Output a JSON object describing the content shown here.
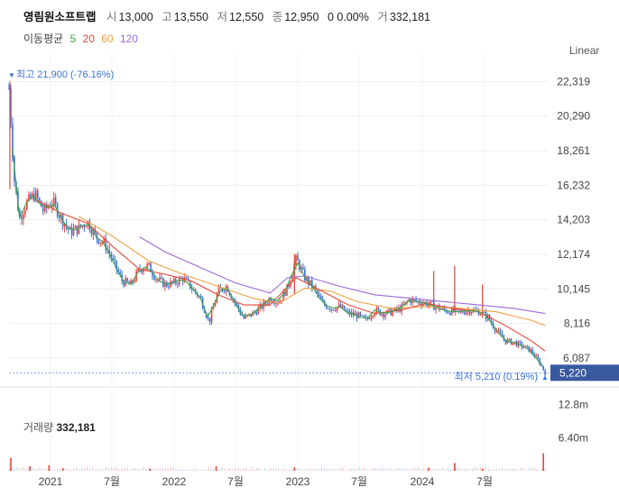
{
  "header": {
    "name": "영림원소프트랩",
    "open_label": "시",
    "open": "13,000",
    "high_label": "고",
    "high": "13,550",
    "low_label": "저",
    "low": "12,550",
    "close_label": "종",
    "close": "12,950",
    "change": "0 0.00%",
    "volume_label": "거",
    "volume": "332,181"
  },
  "moving_average": {
    "label": "이동평균",
    "periods": [
      {
        "text": "5",
        "color": "#3fa34d"
      },
      {
        "text": "20",
        "color": "#e8463a"
      },
      {
        "text": "60",
        "color": "#f0a040"
      },
      {
        "text": "120",
        "color": "#9b6bd8"
      }
    ]
  },
  "scale_mode": "Linear",
  "chart_data": {
    "type": "candlestick",
    "price_axis": {
      "ticks": [
        "22,319",
        "20,290",
        "18,261",
        "16,232",
        "14,203",
        "12,174",
        "10,145",
        "8,116",
        "6,087"
      ],
      "tick_values": [
        22319,
        20290,
        18261,
        16232,
        14203,
        12174,
        10145,
        8116,
        6087
      ],
      "ylim": [
        4600,
        23400
      ],
      "last_price_label": "5,220",
      "last_price": 5220
    },
    "x_axis": {
      "labels": [
        "2021",
        "7월",
        "2022",
        "7월",
        "2023",
        "7월",
        "2024",
        "7월"
      ],
      "range": [
        "2020-11",
        "2024-11"
      ]
    },
    "annotations": {
      "high": {
        "text": "최고 21,900 (-76.16%)",
        "value": 21900
      },
      "low": {
        "text": "최저 5,210 (0.19%)",
        "value": 5210
      }
    },
    "series_close": [
      {
        "t": 0.0,
        "v": 21900
      },
      {
        "t": 0.3,
        "v": 16600
      },
      {
        "t": 0.6,
        "v": 14300
      },
      {
        "t": 1.0,
        "v": 15200
      },
      {
        "t": 1.5,
        "v": 15700
      },
      {
        "t": 2.0,
        "v": 14700
      },
      {
        "t": 2.5,
        "v": 15300
      },
      {
        "t": 3.0,
        "v": 14300
      },
      {
        "t": 3.5,
        "v": 13500
      },
      {
        "t": 4.0,
        "v": 13700
      },
      {
        "t": 4.5,
        "v": 14100
      },
      {
        "t": 5.0,
        "v": 13200
      },
      {
        "t": 5.5,
        "v": 12800
      },
      {
        "t": 6.0,
        "v": 11700
      },
      {
        "t": 6.5,
        "v": 10600
      },
      {
        "t": 7.0,
        "v": 10400
      },
      {
        "t": 7.5,
        "v": 11300
      },
      {
        "t": 8.0,
        "v": 11500
      },
      {
        "t": 8.5,
        "v": 10700
      },
      {
        "t": 9.0,
        "v": 10400
      },
      {
        "t": 9.5,
        "v": 10500
      },
      {
        "t": 10.0,
        "v": 10800
      },
      {
        "t": 10.5,
        "v": 10200
      },
      {
        "t": 11.0,
        "v": 9600
      },
      {
        "t": 11.5,
        "v": 8200
      },
      {
        "t": 12.0,
        "v": 10000
      },
      {
        "t": 12.5,
        "v": 10300
      },
      {
        "t": 13.0,
        "v": 9300
      },
      {
        "t": 13.5,
        "v": 8400
      },
      {
        "t": 14.0,
        "v": 8700
      },
      {
        "t": 14.5,
        "v": 9100
      },
      {
        "t": 15.0,
        "v": 9600
      },
      {
        "t": 15.5,
        "v": 9400
      },
      {
        "t": 16.0,
        "v": 10200
      },
      {
        "t": 16.5,
        "v": 11900
      },
      {
        "t": 17.0,
        "v": 10800
      },
      {
        "t": 17.5,
        "v": 10200
      },
      {
        "t": 18.0,
        "v": 9300
      },
      {
        "t": 18.5,
        "v": 9000
      },
      {
        "t": 19.0,
        "v": 9100
      },
      {
        "t": 19.5,
        "v": 8700
      },
      {
        "t": 20.0,
        "v": 8600
      },
      {
        "t": 20.5,
        "v": 8300
      },
      {
        "t": 21.0,
        "v": 8900
      },
      {
        "t": 21.5,
        "v": 8700
      },
      {
        "t": 22.0,
        "v": 8800
      },
      {
        "t": 22.5,
        "v": 9000
      },
      {
        "t": 23.0,
        "v": 9500
      },
      {
        "t": 23.5,
        "v": 9400
      },
      {
        "t": 24.0,
        "v": 9300
      },
      {
        "t": 24.5,
        "v": 9100
      },
      {
        "t": 25.0,
        "v": 8900
      },
      {
        "t": 25.5,
        "v": 8800
      },
      {
        "t": 26.0,
        "v": 8800
      },
      {
        "t": 26.5,
        "v": 8900
      },
      {
        "t": 27.0,
        "v": 8800
      },
      {
        "t": 27.5,
        "v": 8500
      },
      {
        "t": 28.0,
        "v": 7700
      },
      {
        "t": 28.5,
        "v": 7100
      },
      {
        "t": 29.0,
        "v": 7000
      },
      {
        "t": 29.5,
        "v": 6800
      },
      {
        "t": 30.0,
        "v": 6500
      },
      {
        "t": 30.5,
        "v": 5800
      },
      {
        "t": 30.8,
        "v": 5220
      }
    ],
    "ma120": [
      {
        "t": 7.5,
        "v": 13200
      },
      {
        "t": 9.0,
        "v": 12300
      },
      {
        "t": 11.0,
        "v": 11400
      },
      {
        "t": 13.0,
        "v": 10500
      },
      {
        "t": 15.0,
        "v": 9900
      },
      {
        "t": 16.0,
        "v": 10800
      },
      {
        "t": 17.0,
        "v": 10900
      },
      {
        "t": 19.0,
        "v": 10300
      },
      {
        "t": 21.0,
        "v": 9800
      },
      {
        "t": 23.0,
        "v": 9600
      },
      {
        "t": 25.0,
        "v": 9400
      },
      {
        "t": 27.0,
        "v": 9200
      },
      {
        "t": 29.0,
        "v": 9000
      },
      {
        "t": 30.8,
        "v": 8700
      }
    ],
    "ma60": [
      {
        "t": 4.0,
        "v": 14400
      },
      {
        "t": 6.0,
        "v": 13200
      },
      {
        "t": 8.0,
        "v": 11800
      },
      {
        "t": 10.0,
        "v": 11000
      },
      {
        "t": 12.0,
        "v": 10300
      },
      {
        "t": 14.0,
        "v": 9600
      },
      {
        "t": 15.5,
        "v": 9300
      },
      {
        "t": 17.0,
        "v": 10200
      },
      {
        "t": 18.5,
        "v": 10000
      },
      {
        "t": 20.0,
        "v": 9400
      },
      {
        "t": 22.0,
        "v": 9000
      },
      {
        "t": 24.0,
        "v": 9100
      },
      {
        "t": 26.0,
        "v": 9000
      },
      {
        "t": 28.0,
        "v": 8800
      },
      {
        "t": 30.0,
        "v": 8300
      },
      {
        "t": 30.8,
        "v": 8000
      }
    ],
    "ma20": [
      {
        "t": 1.5,
        "v": 15400
      },
      {
        "t": 3.0,
        "v": 14600
      },
      {
        "t": 4.5,
        "v": 14000
      },
      {
        "t": 6.0,
        "v": 12600
      },
      {
        "t": 7.5,
        "v": 11300
      },
      {
        "t": 9.0,
        "v": 11000
      },
      {
        "t": 10.5,
        "v": 10600
      },
      {
        "t": 12.0,
        "v": 9800
      },
      {
        "t": 13.5,
        "v": 9200
      },
      {
        "t": 15.0,
        "v": 9200
      },
      {
        "t": 16.5,
        "v": 10800
      },
      {
        "t": 18.0,
        "v": 10000
      },
      {
        "t": 19.5,
        "v": 9200
      },
      {
        "t": 21.0,
        "v": 8700
      },
      {
        "t": 22.5,
        "v": 8900
      },
      {
        "t": 24.0,
        "v": 9300
      },
      {
        "t": 25.5,
        "v": 9000
      },
      {
        "t": 27.0,
        "v": 8800
      },
      {
        "t": 28.5,
        "v": 8000
      },
      {
        "t": 30.0,
        "v": 7100
      },
      {
        "t": 30.8,
        "v": 6500
      }
    ],
    "volume": {
      "label": "거래량",
      "value": "332,181",
      "ticks": [
        "12.8m",
        "6.40m"
      ],
      "tick_values": [
        12.8,
        6.4
      ],
      "ylim": [
        0,
        15.5
      ],
      "spikes": [
        {
          "t": 0.1,
          "v": 2.5
        },
        {
          "t": 1.2,
          "v": 0.9
        },
        {
          "t": 2.3,
          "v": 1.1
        },
        {
          "t": 3.1,
          "v": 0.5
        },
        {
          "t": 8.1,
          "v": 0.4
        },
        {
          "t": 11.9,
          "v": 0.9
        },
        {
          "t": 16.4,
          "v": 0.7
        },
        {
          "t": 24.1,
          "v": 0.6
        },
        {
          "t": 25.6,
          "v": 1.5
        },
        {
          "t": 27.2,
          "v": 0.4
        },
        {
          "t": 30.7,
          "v": 3.4
        }
      ]
    }
  }
}
